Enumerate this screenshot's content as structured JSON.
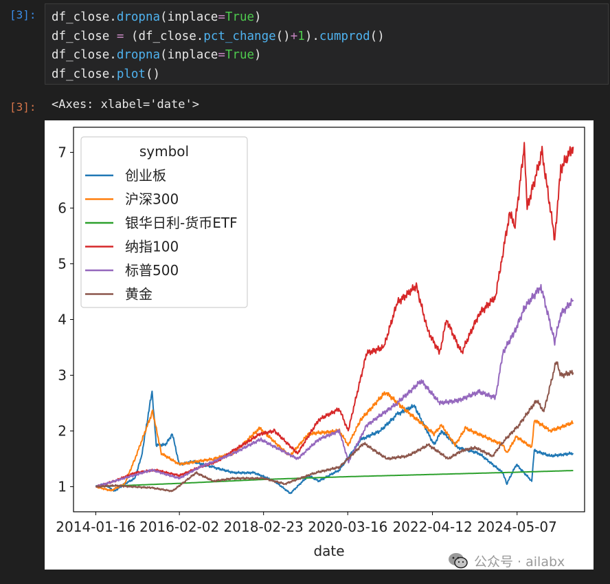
{
  "cells": {
    "input_prompt": "[3]:",
    "output_prompt": "[3]:",
    "output_text": "<Axes: xlabel='date'>"
  },
  "watermark": {
    "icon": "wechat-icon",
    "text": "公众号 · ailabx"
  },
  "colors": {
    "创业板": "#1f77b4",
    "沪深300": "#ff7f0e",
    "银华日利-货币ETF": "#2ca02c",
    "纳指100": "#d62728",
    "标普500": "#9467bd",
    "黄金": "#8c564b"
  },
  "chart_data": {
    "type": "line",
    "xlabel": "date",
    "ylabel": "",
    "ylim": [
      0.55,
      7.45
    ],
    "yticks": [
      1,
      2,
      3,
      4,
      5,
      6,
      7
    ],
    "xticks": [
      "2014-01-16",
      "2016-02-02",
      "2018-02-23",
      "2020-03-16",
      "2022-04-12",
      "2024-05-07"
    ],
    "xlim": [
      "2013-07-01",
      "2025-12-31"
    ],
    "legend": {
      "title": "symbol",
      "placement": "top-left"
    },
    "grid": false,
    "series": [
      {
        "name": "创业板",
        "points": [
          [
            "2014-01-16",
            1.0
          ],
          [
            "2014-04-01",
            1.05
          ],
          [
            "2014-07-01",
            0.92
          ],
          [
            "2014-10-01",
            1.05
          ],
          [
            "2015-01-01",
            1.15
          ],
          [
            "2015-03-01",
            1.55
          ],
          [
            "2015-06-03",
            2.72
          ],
          [
            "2015-07-10",
            1.75
          ],
          [
            "2015-10-01",
            1.75
          ],
          [
            "2015-12-01",
            1.95
          ],
          [
            "2016-02-01",
            1.4
          ],
          [
            "2016-06-01",
            1.45
          ],
          [
            "2016-12-01",
            1.35
          ],
          [
            "2017-06-01",
            1.25
          ],
          [
            "2017-12-01",
            1.25
          ],
          [
            "2018-06-01",
            1.1
          ],
          [
            "2018-10-20",
            0.88
          ],
          [
            "2019-04-01",
            1.2
          ],
          [
            "2019-07-01",
            1.1
          ],
          [
            "2020-01-01",
            1.3
          ],
          [
            "2020-07-15",
            1.85
          ],
          [
            "2021-01-01",
            2.0
          ],
          [
            "2021-06-01",
            2.3
          ],
          [
            "2021-11-01",
            2.45
          ],
          [
            "2022-04-26",
            1.75
          ],
          [
            "2022-07-01",
            2.0
          ],
          [
            "2022-12-01",
            1.7
          ],
          [
            "2023-06-01",
            1.6
          ],
          [
            "2024-01-01",
            1.25
          ],
          [
            "2024-02-05",
            1.05
          ],
          [
            "2024-05-01",
            1.4
          ],
          [
            "2024-09-15",
            1.1
          ],
          [
            "2024-10-08",
            1.65
          ],
          [
            "2025-03-01",
            1.55
          ],
          [
            "2025-09-20",
            1.6
          ]
        ]
      },
      {
        "name": "沪深300",
        "points": [
          [
            "2014-01-16",
            1.0
          ],
          [
            "2014-06-01",
            0.93
          ],
          [
            "2014-10-01",
            1.05
          ],
          [
            "2015-01-01",
            1.5
          ],
          [
            "2015-06-08",
            2.35
          ],
          [
            "2015-08-25",
            1.6
          ],
          [
            "2016-02-01",
            1.4
          ],
          [
            "2016-12-01",
            1.5
          ],
          [
            "2017-06-01",
            1.6
          ],
          [
            "2018-01-20",
            2.05
          ],
          [
            "2018-10-15",
            1.55
          ],
          [
            "2019-04-01",
            1.95
          ],
          [
            "2020-01-01",
            2.0
          ],
          [
            "2020-03-20",
            1.75
          ],
          [
            "2020-07-10",
            2.2
          ],
          [
            "2021-02-18",
            2.7
          ],
          [
            "2021-07-01",
            2.45
          ],
          [
            "2022-04-26",
            1.95
          ],
          [
            "2022-07-01",
            2.1
          ],
          [
            "2022-11-01",
            1.75
          ],
          [
            "2023-02-01",
            2.05
          ],
          [
            "2024-01-01",
            1.75
          ],
          [
            "2024-02-05",
            1.6
          ],
          [
            "2024-05-01",
            1.9
          ],
          [
            "2024-09-15",
            1.7
          ],
          [
            "2024-10-08",
            2.2
          ],
          [
            "2025-03-01",
            2.0
          ],
          [
            "2025-09-20",
            2.15
          ]
        ]
      },
      {
        "name": "银华日利-货币ETF",
        "points": [
          [
            "2014-01-16",
            1.0
          ],
          [
            "2016-02-02",
            1.06
          ],
          [
            "2018-02-23",
            1.13
          ],
          [
            "2020-03-16",
            1.18
          ],
          [
            "2022-04-12",
            1.22
          ],
          [
            "2024-05-07",
            1.26
          ],
          [
            "2025-09-20",
            1.29
          ]
        ]
      },
      {
        "name": "纳指100",
        "points": [
          [
            "2014-01-16",
            1.0
          ],
          [
            "2014-07-01",
            1.1
          ],
          [
            "2015-01-01",
            1.25
          ],
          [
            "2015-07-01",
            1.3
          ],
          [
            "2016-02-01",
            1.2
          ],
          [
            "2016-08-01",
            1.35
          ],
          [
            "2017-01-01",
            1.45
          ],
          [
            "2017-06-01",
            1.65
          ],
          [
            "2018-01-26",
            1.95
          ],
          [
            "2018-06-01",
            2.0
          ],
          [
            "2018-12-24",
            1.6
          ],
          [
            "2019-07-01",
            2.2
          ],
          [
            "2020-01-01",
            2.4
          ],
          [
            "2020-03-20",
            2.0
          ],
          [
            "2020-09-01",
            3.4
          ],
          [
            "2021-02-01",
            3.5
          ],
          [
            "2021-06-01",
            4.3
          ],
          [
            "2021-11-19",
            4.6
          ],
          [
            "2022-03-01",
            3.8
          ],
          [
            "2022-06-16",
            3.4
          ],
          [
            "2022-08-15",
            4.0
          ],
          [
            "2022-12-28",
            3.4
          ],
          [
            "2023-06-01",
            4.1
          ],
          [
            "2023-10-26",
            4.4
          ],
          [
            "2024-01-01",
            5.2
          ],
          [
            "2024-03-01",
            5.9
          ],
          [
            "2024-04-19",
            5.7
          ],
          [
            "2024-07-10",
            7.1
          ],
          [
            "2024-08-05",
            6.0
          ],
          [
            "2024-12-16",
            7.0
          ],
          [
            "2025-04-08",
            5.45
          ],
          [
            "2025-06-01",
            6.7
          ],
          [
            "2025-09-20",
            7.1
          ]
        ]
      },
      {
        "name": "标普500",
        "points": [
          [
            "2014-01-16",
            1.0
          ],
          [
            "2014-07-01",
            1.1
          ],
          [
            "2015-06-01",
            1.3
          ],
          [
            "2016-02-01",
            1.15
          ],
          [
            "2016-08-01",
            1.35
          ],
          [
            "2017-06-01",
            1.6
          ],
          [
            "2018-01-26",
            1.85
          ],
          [
            "2018-12-24",
            1.5
          ],
          [
            "2019-07-01",
            1.85
          ],
          [
            "2020-01-01",
            2.0
          ],
          [
            "2020-03-23",
            1.45
          ],
          [
            "2020-09-01",
            2.1
          ],
          [
            "2021-06-01",
            2.5
          ],
          [
            "2022-01-03",
            2.9
          ],
          [
            "2022-06-16",
            2.5
          ],
          [
            "2022-12-01",
            2.55
          ],
          [
            "2023-06-01",
            2.7
          ],
          [
            "2023-10-27",
            2.6
          ],
          [
            "2024-01-01",
            3.4
          ],
          [
            "2024-04-19",
            3.8
          ],
          [
            "2024-07-10",
            4.2
          ],
          [
            "2024-12-06",
            4.6
          ],
          [
            "2025-04-08",
            3.6
          ],
          [
            "2025-06-01",
            4.1
          ],
          [
            "2025-09-20",
            4.35
          ]
        ]
      },
      {
        "name": "黄金",
        "points": [
          [
            "2014-01-16",
            1.0
          ],
          [
            "2014-07-01",
            1.02
          ],
          [
            "2015-06-01",
            0.98
          ],
          [
            "2015-12-01",
            0.92
          ],
          [
            "2016-07-01",
            1.25
          ],
          [
            "2016-12-01",
            1.1
          ],
          [
            "2017-06-01",
            1.15
          ],
          [
            "2018-02-23",
            1.15
          ],
          [
            "2018-09-01",
            1.05
          ],
          [
            "2019-06-01",
            1.25
          ],
          [
            "2020-01-01",
            1.35
          ],
          [
            "2020-08-06",
            1.78
          ],
          [
            "2021-03-01",
            1.5
          ],
          [
            "2021-09-01",
            1.55
          ],
          [
            "2022-03-08",
            1.75
          ],
          [
            "2022-09-01",
            1.5
          ],
          [
            "2023-01-01",
            1.65
          ],
          [
            "2023-05-01",
            1.7
          ],
          [
            "2023-10-01",
            1.55
          ],
          [
            "2024-01-01",
            1.8
          ],
          [
            "2024-05-20",
            2.1
          ],
          [
            "2024-10-30",
            2.55
          ],
          [
            "2025-01-01",
            2.35
          ],
          [
            "2025-04-22",
            3.25
          ],
          [
            "2025-06-01",
            3.0
          ],
          [
            "2025-09-20",
            3.05
          ]
        ]
      }
    ]
  }
}
